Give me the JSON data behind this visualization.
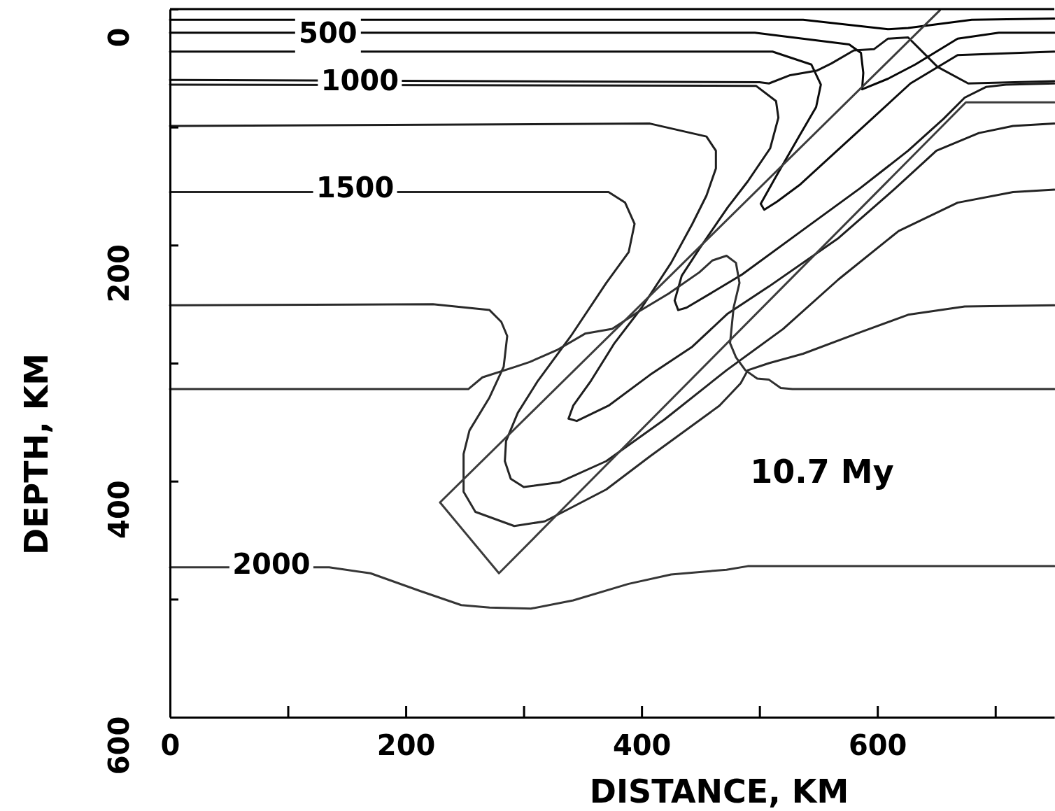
{
  "chart_data": {
    "type": "line",
    "xlabel": "DISTANCE, KM",
    "ylabel": "DEPTH, KM",
    "xlim": [
      0,
      750
    ],
    "ylim": [
      600,
      0
    ],
    "xticks": [
      0,
      {
        "value": 100,
        "label": null
      },
      200,
      {
        "value": 300,
        "label": null
      },
      400,
      {
        "value": 500,
        "label": null
      },
      600,
      {
        "value": 700,
        "label": null
      }
    ],
    "yticks": [
      0,
      {
        "value": 100,
        "label": null
      },
      200,
      {
        "value": 300,
        "label": null
      },
      400,
      {
        "value": 500,
        "label": null
      },
      600
    ],
    "grid": false,
    "marker": "none",
    "line_style": "solid",
    "annotations": [
      {
        "text": "500",
        "x": 134,
        "y": 22
      },
      {
        "text": "1000",
        "x": 161,
        "y": 62
      },
      {
        "text": "1500",
        "x": 157,
        "y": 153
      },
      {
        "text": "2000",
        "x": 86,
        "y": 472
      },
      "10.7 My"
    ],
    "series": [
      {
        "color": "#000000",
        "x": [
          0,
          537,
          609,
          626,
          680,
          750
        ],
        "values": [
          9,
          9,
          17,
          16,
          9,
          8
        ]
      },
      {
        "color": "#060606",
        "x": [
          0,
          496,
          576,
          586,
          588,
          587,
          609,
          632,
          668,
          703,
          750
        ],
        "values": [
          20,
          20,
          30,
          37,
          54,
          68,
          59,
          47,
          25,
          20,
          20
        ]
      },
      {
        "color": "#0c0c0c",
        "x": [
          0,
          511,
          544,
          552,
          548,
          534,
          515,
          501,
          504,
          515,
          534,
          581,
          628,
          668,
          750
        ],
        "values": [
          36,
          36,
          47,
          64,
          83,
          107,
          140,
          165,
          170,
          163,
          149,
          106,
          63,
          39,
          36
        ]
      },
      {
        "color": "#121212",
        "x": [
          0,
          500,
          508,
          526,
          549,
          561,
          580,
          597,
          609,
          626,
          635,
          651,
          677,
          750
        ],
        "values": [
          60,
          62,
          63,
          56,
          52,
          46,
          35,
          34,
          25,
          24,
          33,
          49,
          63,
          61
        ]
      },
      {
        "color": "#181818",
        "x": [
          0,
          497,
          514,
          516,
          509,
          490,
          473,
          462,
          449,
          434,
          428,
          431,
          438,
          460,
          485,
          537,
          585,
          626,
          656,
          674,
          692,
          709,
          750
        ],
        "values": [
          64,
          65,
          78,
          92,
          118,
          146,
          168,
          184,
          203,
          226,
          247,
          255,
          253,
          240,
          225,
          187,
          152,
          120,
          93,
          75,
          66,
          64,
          63
        ]
      },
      {
        "color": "#1e1e1e",
        "x": [
          0,
          407,
          455,
          463,
          463,
          455,
          443,
          425,
          400,
          377,
          357,
          342,
          338,
          345,
          372,
          407,
          443,
          473,
          508,
          567,
          615,
          650,
          686,
          715,
          750
        ],
        "values": [
          99,
          97,
          108,
          120,
          135,
          158,
          182,
          215,
          253,
          283,
          315,
          336,
          347,
          349,
          336,
          310,
          286,
          258,
          235,
          194,
          152,
          120,
          105,
          99,
          97
        ]
      },
      {
        "color": "#242424",
        "x": [
          0,
          372,
          386,
          394,
          389,
          370,
          340,
          312,
          295,
          285,
          284,
          289,
          300,
          330,
          370,
          419,
          472,
          520,
          567,
          618,
          668,
          715,
          750
        ],
        "values": [
          155,
          155,
          164,
          182,
          206,
          232,
          277,
          315,
          342,
          366,
          383,
          398,
          405,
          401,
          383,
          348,
          306,
          271,
          229,
          188,
          164,
          155,
          153
        ]
      },
      {
        "color": "#2a2a2a",
        "x": [
          0,
          223,
          271,
          281,
          286,
          283,
          271,
          254,
          249,
          249,
          259,
          292,
          318,
          370,
          407,
          466,
          484,
          490,
          508,
          537,
          585,
          626,
          674,
          750
        ],
        "values": [
          251,
          250,
          255,
          265,
          277,
          303,
          329,
          357,
          377,
          409,
          426,
          438,
          434,
          407,
          379,
          336,
          317,
          306,
          300,
          292,
          274,
          259,
          252,
          251
        ]
      },
      {
        "color": "#303030",
        "x": [
          0,
          253,
          265,
          293,
          305,
          328,
          352,
          375,
          398,
          423,
          449,
          460,
          472,
          480,
          483,
          478,
          475,
          480,
          488,
          498,
          508,
          518,
          528,
          750
        ],
        "values": [
          322,
          322,
          312,
          303,
          299,
          289,
          275,
          271,
          256,
          241,
          223,
          213,
          209,
          215,
          232,
          253,
          283,
          295,
          306,
          313,
          314,
          321,
          322,
          322
        ]
      },
      {
        "color": "#363636",
        "x": [
          0,
          135,
          170,
          212,
          247,
          271,
          306,
          342,
          389,
          425,
          472,
          490,
          750
        ],
        "values": [
          473,
          473,
          478,
          493,
          505,
          507,
          508,
          501,
          487,
          479,
          475,
          472,
          472
        ]
      },
      {
        "color": "#3c3c3c",
        "x": [
          653,
          229,
          279,
          675,
          750
        ],
        "values": [
          1,
          418,
          478,
          79,
          79
        ]
      }
    ]
  }
}
